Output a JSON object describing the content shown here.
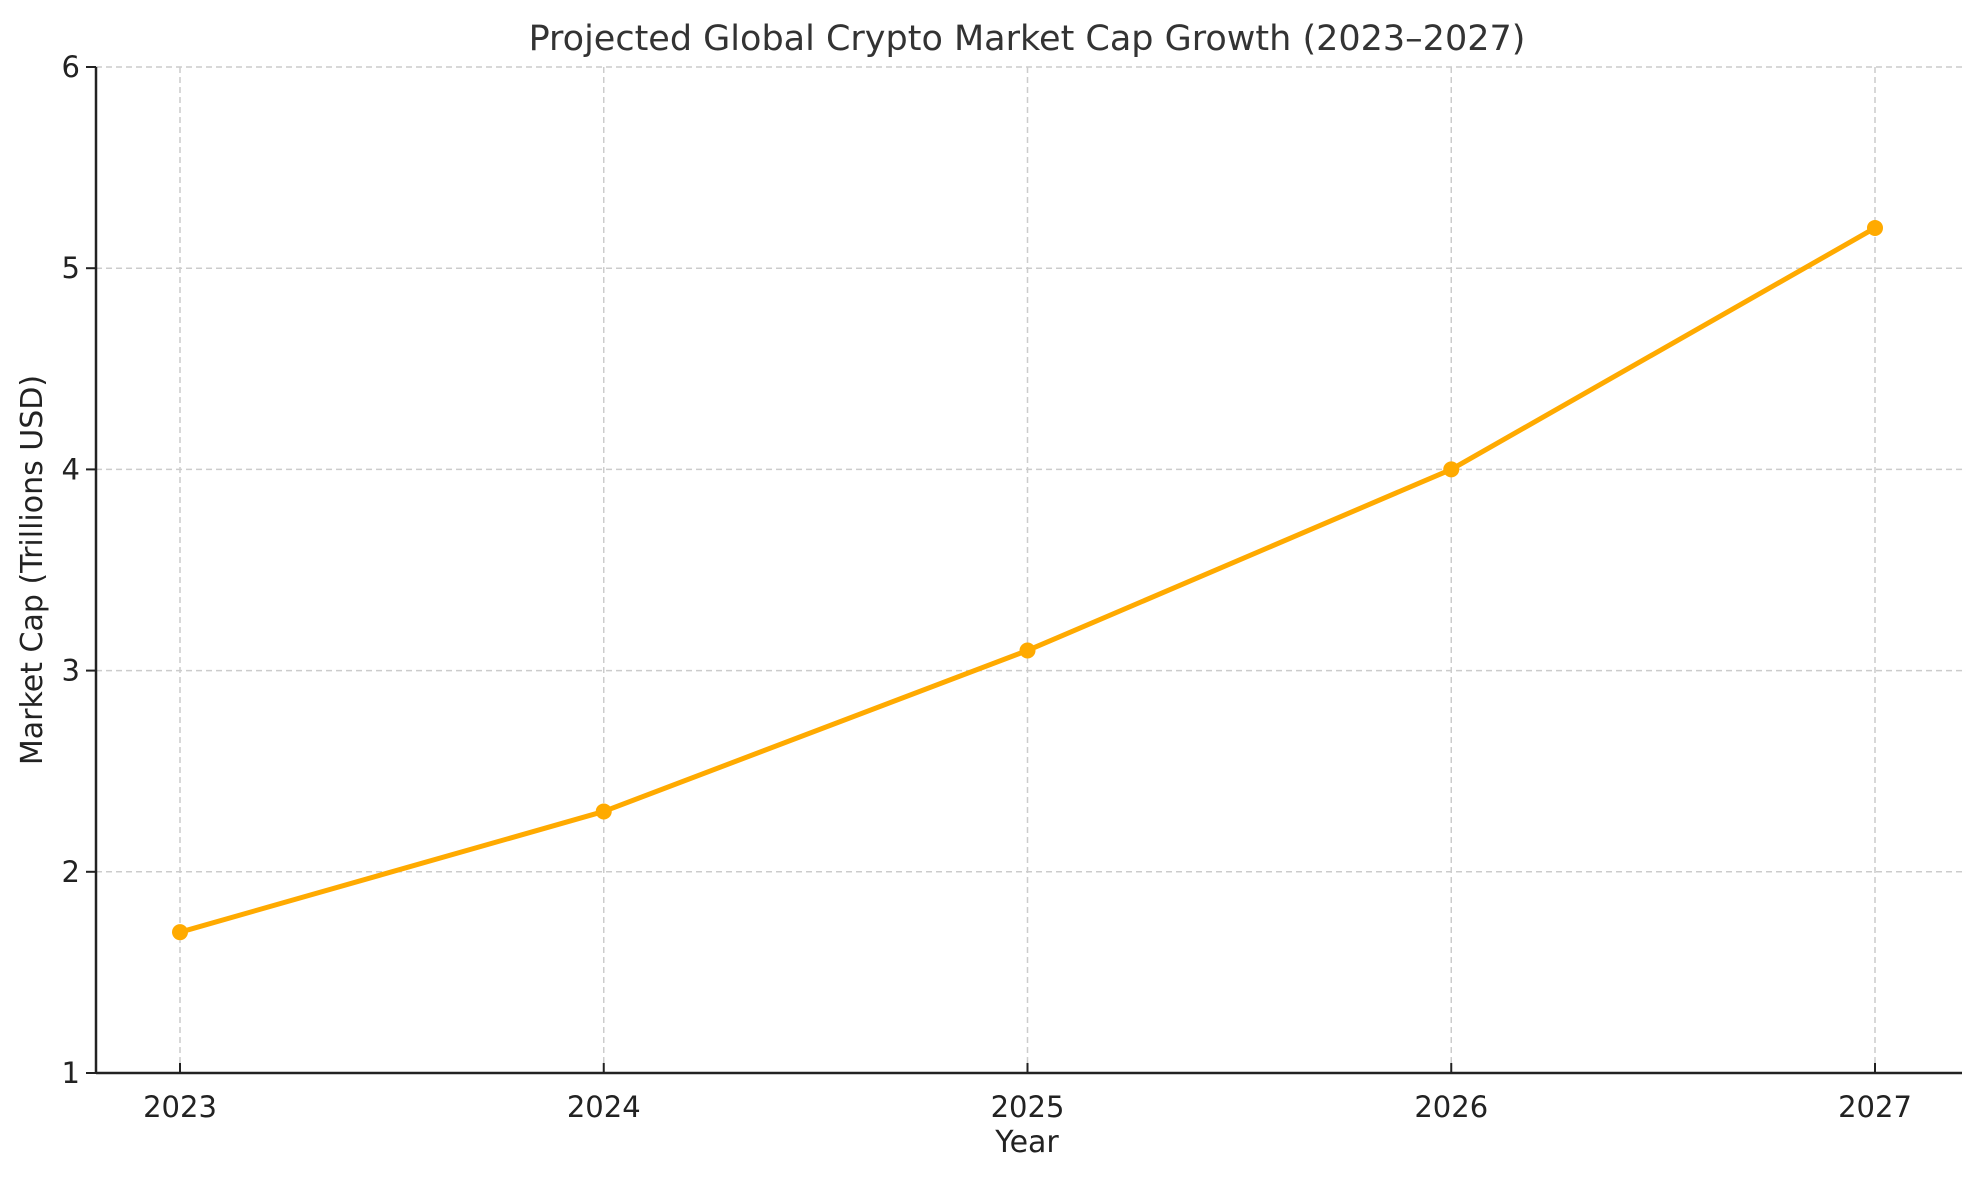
{
  "chart_data": {
    "type": "line",
    "title": "Projected Global Crypto Market Cap Growth (2023–2027)",
    "xlabel": "Year",
    "ylabel": "Market Cap (Trillions USD)",
    "categories": [
      "2023",
      "2024",
      "2025",
      "2026",
      "2027"
    ],
    "series": [
      {
        "name": "Market Cap",
        "values": [
          1.7,
          2.3,
          3.1,
          4.0,
          5.2
        ],
        "color": "#FFAA00"
      }
    ],
    "ylim": [
      1,
      6
    ],
    "yticks": [
      "1",
      "2",
      "3",
      "4",
      "5",
      "6"
    ],
    "grid": true,
    "legend": null
  }
}
